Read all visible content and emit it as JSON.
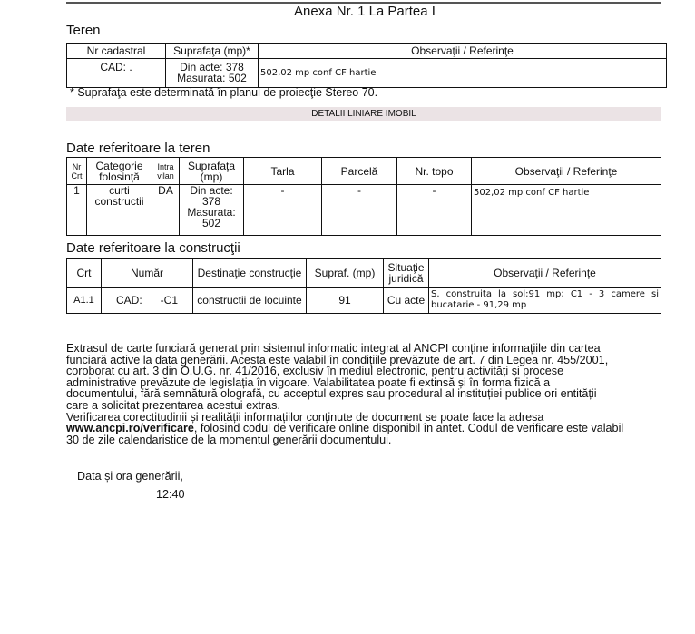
{
  "title": "Anexa Nr. 1 La Partea I",
  "teren": {
    "heading": "Teren",
    "headers": [
      "Nr cadastral",
      "Suprafaţa (mp)*",
      "Observaţii / Referinţe"
    ],
    "row": {
      "cad": "CAD: .",
      "acte": "Din acte: 378",
      "masurata": "Masurata: 502",
      "obs": "502,02 mp conf CF hartie"
    },
    "footnote": "* Suprafaţa este determinată în planul de proiecţie Stereo 70.",
    "bar": "DETALII LINIARE IMOBIL"
  },
  "date_teren": {
    "heading": "Date referitoare la teren",
    "headers": [
      "Nr Crt",
      "Categorie folosință",
      "Intra vilan",
      "Suprafaţa (mp)",
      "Tarla",
      "Parcelă",
      "Nr. topo",
      "Observaţii / Referinţe"
    ],
    "row": [
      "1",
      "curti constructii",
      "DA",
      "Din acte: 378 Masurata: 502",
      "-",
      "-",
      "-",
      "502,02 mp conf CF hartie"
    ]
  },
  "date_constructii": {
    "heading": "Date referitoare la construcţii",
    "headers": [
      "Crt",
      "Număr",
      "Destinaţie construcţie",
      "Supraf. (mp)",
      "Situaţie juridică",
      "Observaţii / Referinţe"
    ],
    "row": [
      "A1.1",
      "CAD:      -C1",
      "constructii de locuinte",
      "91",
      "Cu acte",
      "S. construita la sol:91 mp;  C1 - 3 camere si bucatarie - 91,29 mp"
    ]
  },
  "paragraph": [
    "Extrasul de carte funciară generat prin sistemul informatic integrat al ANCPI conține informațiile din cartea",
    "funciară active la data generării. Acesta este valabil în condițiile prevăzute de art. 7 din Legea nr. 455/2001,",
    "coroborat cu art. 3 din O.U.G. nr. 41/2016, exclusiv în mediul electronic, pentru activități și procese",
    "administrative prevăzute de legislația în vigoare. Valabilitatea poate fi extinsă și în forma fizică a",
    "documentului, fără semnătură olografă, cu acceptul expres sau procedural al instituției publice ori entității",
    "care a solicitat prezentarea acestui extras.",
    "Verificarea corectitudinii și realității informațiilor conținute de document se poate face la adresa"
  ],
  "link": "www.ancpi.ro/verificare",
  "link_rest": ", folosind codul de verificare online disponibil în antet. Codul de verificare este valabil",
  "last_line": "30 de zile calendaristice de la momentul generării documentului.",
  "generated_label": "Data și ora generării,",
  "generated_time": "12:40"
}
